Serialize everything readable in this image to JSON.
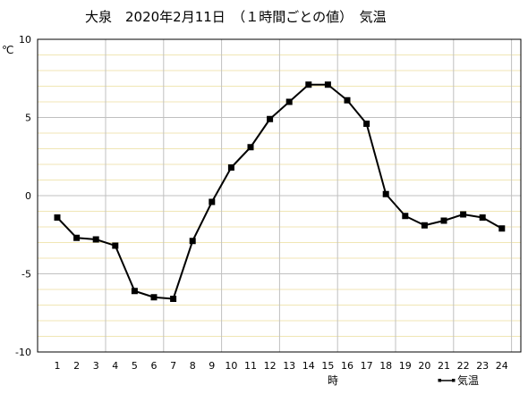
{
  "chart_data": {
    "type": "line",
    "title": "大泉　2020年2月11日　（１時間ごとの値）　気温",
    "ylabel": "℃",
    "xlabel": "時",
    "legend": "気温",
    "legend_position": "bottom-right",
    "ylim": [
      -10,
      10
    ],
    "yticks": [
      "10",
      "5",
      "0",
      "-5",
      "-10"
    ],
    "x": [
      1,
      2,
      3,
      4,
      5,
      6,
      7,
      8,
      9,
      10,
      11,
      12,
      13,
      14,
      15,
      16,
      17,
      18,
      19,
      20,
      21,
      22,
      23,
      24
    ],
    "xtick_labels": [
      "1",
      "2",
      "3",
      "4",
      "5",
      "6",
      "7",
      "8",
      "9",
      "10",
      "11",
      "12",
      "13",
      "14",
      "15",
      "16",
      "17",
      "18",
      "19",
      "20",
      "21",
      "22",
      "23",
      "24"
    ],
    "series": [
      {
        "name": "気温",
        "values": [
          -1.4,
          -2.7,
          -2.8,
          -3.2,
          -6.1,
          -6.5,
          -6.6,
          -2.9,
          -0.4,
          1.8,
          3.1,
          4.9,
          6.0,
          7.1,
          7.1,
          6.1,
          4.6,
          0.1,
          -1.3,
          -1.9,
          -1.6,
          -1.2,
          -1.4,
          -2.1
        ]
      }
    ],
    "grid": true,
    "colors": {
      "line": "#000000",
      "minor_grid": "#f0e6b4",
      "major_grid": "#c0c0c0",
      "frame": "#000000"
    }
  }
}
